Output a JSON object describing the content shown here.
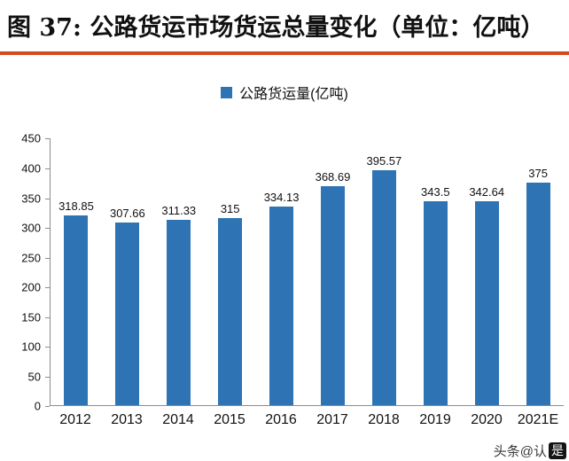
{
  "header": {
    "title": "图 37: 公路货运市场货运总量变化（单位：亿吨）",
    "accent_color": "#d6481f"
  },
  "legend": {
    "label": "公路货运量(亿吨)"
  },
  "watermark": {
    "text": "头条@认",
    "badge": "是"
  },
  "chart_data": {
    "type": "bar",
    "title": "公路货运市场货运总量变化（单位：亿吨）",
    "series_name": "公路货运量(亿吨)",
    "categories": [
      "2012",
      "2013",
      "2014",
      "2015",
      "2016",
      "2017",
      "2018",
      "2019",
      "2020",
      "2021E"
    ],
    "values": [
      318.85,
      307.66,
      311.33,
      315,
      334.13,
      368.69,
      395.57,
      343.5,
      342.64,
      375
    ],
    "value_labels": [
      "318.85",
      "307.66",
      "311.33",
      "315",
      "334.13",
      "368.69",
      "395.57",
      "343.5",
      "342.64",
      "375"
    ],
    "xlabel": "",
    "ylabel": "",
    "ylim": [
      0,
      450
    ],
    "ytick_step": 50,
    "grid": false,
    "legend_position": "top",
    "bar_color": "#2e74b5"
  }
}
